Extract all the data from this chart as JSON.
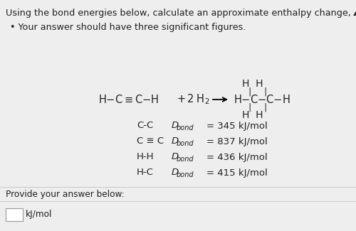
{
  "title": "Using the bond energies below, calculate an approximate enthalpy change, ΔH, for this reaction:",
  "bullet": "• Your answer should have three significant figures.",
  "provide_text": "Provide your answer below:",
  "input_label": "kJ/mol",
  "bg_color": "#eeeeee",
  "text_color": "#222222",
  "bond_lines": [
    {
      "prefix": "C-C",
      "value": "= 345 kJ/mol"
    },
    {
      "prefix": "C ≡ C",
      "value": "= 837 kJ/mol"
    },
    {
      "prefix": "H-H",
      "value": "= 436 kJ/mol"
    },
    {
      "prefix": "H-C",
      "value": "= 415 kJ/mol"
    }
  ]
}
